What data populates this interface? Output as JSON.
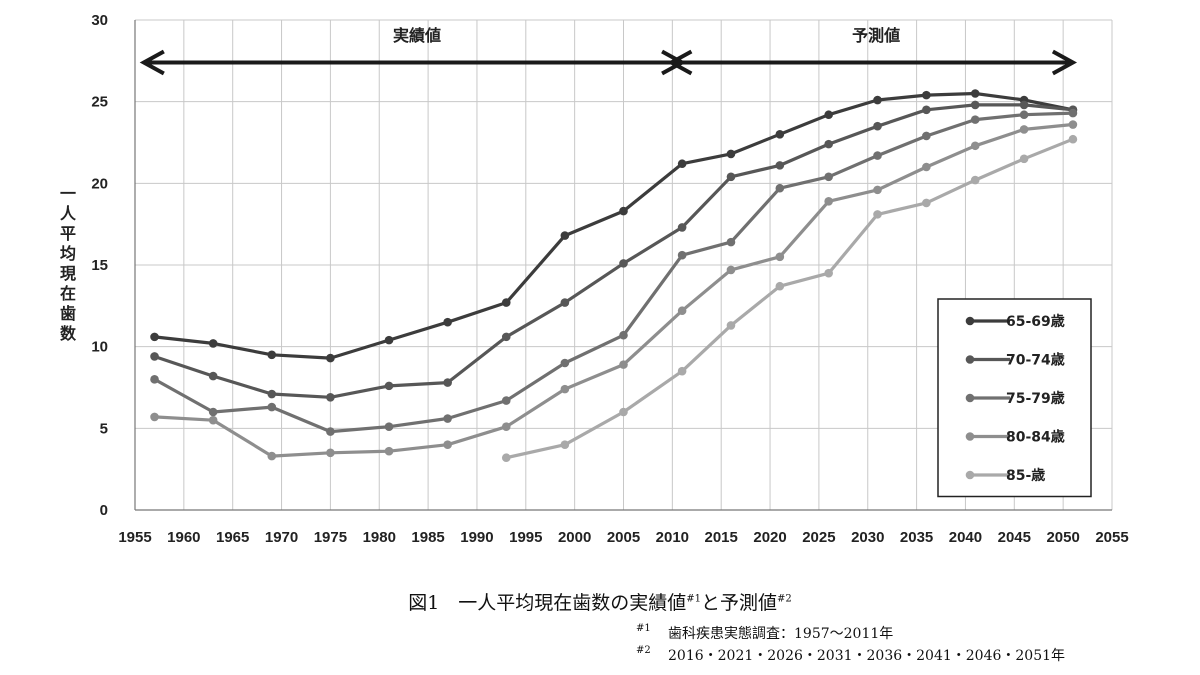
{
  "chart_data": {
    "type": "line",
    "title": "",
    "xlabel": "",
    "ylabel": "一人平均現在歯数",
    "xlim": [
      1955,
      2055
    ],
    "ylim": [
      0,
      30
    ],
    "x_ticks": [
      1955,
      1960,
      1965,
      1970,
      1975,
      1980,
      1985,
      1990,
      1995,
      2000,
      2005,
      2010,
      2015,
      2020,
      2025,
      2030,
      2035,
      2040,
      2045,
      2050,
      2055
    ],
    "y_ticks": [
      0,
      5,
      10,
      15,
      20,
      25,
      30
    ],
    "grid": true,
    "legend_position": "right",
    "periods": [
      {
        "label": "実績値",
        "from": 1957,
        "to": 2011
      },
      {
        "label": "予測値",
        "from": 2011,
        "to": 2051
      }
    ],
    "series": [
      {
        "name": "65-69歳",
        "color": "#3c3c3c",
        "points": [
          [
            1957,
            10.6
          ],
          [
            1963,
            10.2
          ],
          [
            1969,
            9.5
          ],
          [
            1975,
            9.3
          ],
          [
            1981,
            10.4
          ],
          [
            1987,
            11.5
          ],
          [
            1993,
            12.7
          ],
          [
            1999,
            16.8
          ],
          [
            2005,
            18.3
          ],
          [
            2011,
            21.2
          ],
          [
            2016,
            21.8
          ],
          [
            2021,
            23.0
          ],
          [
            2026,
            24.2
          ],
          [
            2031,
            25.1
          ],
          [
            2036,
            25.4
          ],
          [
            2041,
            25.5
          ],
          [
            2046,
            25.1
          ],
          [
            2051,
            24.5
          ]
        ]
      },
      {
        "name": "70-74歳",
        "color": "#575757",
        "points": [
          [
            1957,
            9.4
          ],
          [
            1963,
            8.2
          ],
          [
            1969,
            7.1
          ],
          [
            1975,
            6.9
          ],
          [
            1981,
            7.6
          ],
          [
            1987,
            7.8
          ],
          [
            1993,
            10.6
          ],
          [
            1999,
            12.7
          ],
          [
            2005,
            15.1
          ],
          [
            2011,
            17.3
          ],
          [
            2016,
            20.4
          ],
          [
            2021,
            21.1
          ],
          [
            2026,
            22.4
          ],
          [
            2031,
            23.5
          ],
          [
            2036,
            24.5
          ],
          [
            2041,
            24.8
          ],
          [
            2046,
            24.8
          ],
          [
            2051,
            24.5
          ]
        ]
      },
      {
        "name": "75-79歳",
        "color": "#707070",
        "points": [
          [
            1957,
            8.0
          ],
          [
            1963,
            6.0
          ],
          [
            1969,
            6.3
          ],
          [
            1975,
            4.8
          ],
          [
            1981,
            5.1
          ],
          [
            1987,
            5.6
          ],
          [
            1993,
            6.7
          ],
          [
            1999,
            9.0
          ],
          [
            2005,
            10.7
          ],
          [
            2011,
            15.6
          ],
          [
            2016,
            16.4
          ],
          [
            2021,
            19.7
          ],
          [
            2026,
            20.4
          ],
          [
            2031,
            21.7
          ],
          [
            2036,
            22.9
          ],
          [
            2041,
            23.9
          ],
          [
            2046,
            24.2
          ],
          [
            2051,
            24.3
          ]
        ]
      },
      {
        "name": "80-84歳",
        "color": "#8e8e8e",
        "points": [
          [
            1957,
            5.7
          ],
          [
            1963,
            5.5
          ],
          [
            1969,
            3.3
          ],
          [
            1975,
            3.5
          ],
          [
            1981,
            3.6
          ],
          [
            1987,
            4.0
          ],
          [
            1993,
            5.1
          ],
          [
            1999,
            7.4
          ],
          [
            2005,
            8.9
          ],
          [
            2011,
            12.2
          ],
          [
            2016,
            14.7
          ],
          [
            2021,
            15.5
          ],
          [
            2026,
            18.9
          ],
          [
            2031,
            19.6
          ],
          [
            2036,
            21.0
          ],
          [
            2041,
            22.3
          ],
          [
            2046,
            23.3
          ],
          [
            2051,
            23.6
          ]
        ]
      },
      {
        "name": "85-歳",
        "color": "#a9a9a9",
        "points": [
          [
            1993,
            3.2
          ],
          [
            1999,
            4.0
          ],
          [
            2005,
            6.0
          ],
          [
            2011,
            8.5
          ],
          [
            2016,
            11.3
          ],
          [
            2021,
            13.7
          ],
          [
            2026,
            14.5
          ],
          [
            2031,
            18.1
          ],
          [
            2036,
            18.8
          ],
          [
            2041,
            20.2
          ],
          [
            2046,
            21.5
          ],
          [
            2051,
            22.7
          ]
        ]
      }
    ]
  },
  "caption": {
    "prefix": "図1　一人平均現在歯数の実績値",
    "mark1": "#1",
    "middle": "と予測値",
    "mark2": "#2"
  },
  "notes": [
    {
      "mark": "#1",
      "text": "歯科疾患実態調査：1957～2011年"
    },
    {
      "mark": "#2",
      "text": "2016・2021・2026・2031・2036・2041・2046・2051年"
    }
  ]
}
